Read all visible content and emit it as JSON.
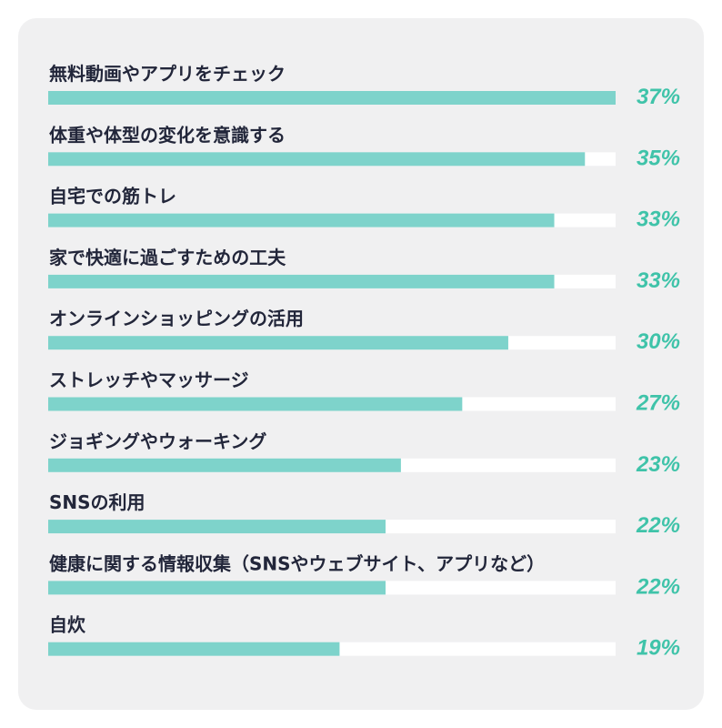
{
  "chart_data": {
    "type": "bar",
    "orientation": "horizontal",
    "categories": [
      "無料動画やアプリをチェック",
      "体重や体型の変化を意識する",
      "自宅での筋トレ",
      "家で快適に過ごすための工夫",
      "オンラインショッピングの活用",
      "ストレッチやマッサージ",
      "ジョギングやウォーキング",
      "SNSの利用",
      "健康に関する情報収集（SNSやウェブサイト、アプリなど）",
      "自炊"
    ],
    "values": [
      37,
      35,
      33,
      33,
      30,
      27,
      23,
      22,
      22,
      19
    ],
    "value_labels": [
      "37%",
      "35%",
      "33%",
      "33%",
      "30%",
      "27%",
      "23%",
      "22%",
      "22%",
      "19%"
    ],
    "unit": "%",
    "xlim": [
      0,
      37
    ],
    "grid": false,
    "legend": "none",
    "colors": {
      "bar": "#7ed3cb",
      "track": "#ffffff",
      "value_text": "#3fc3a9",
      "label_text": "#22263a",
      "card_background": "#f0f0f1"
    }
  }
}
